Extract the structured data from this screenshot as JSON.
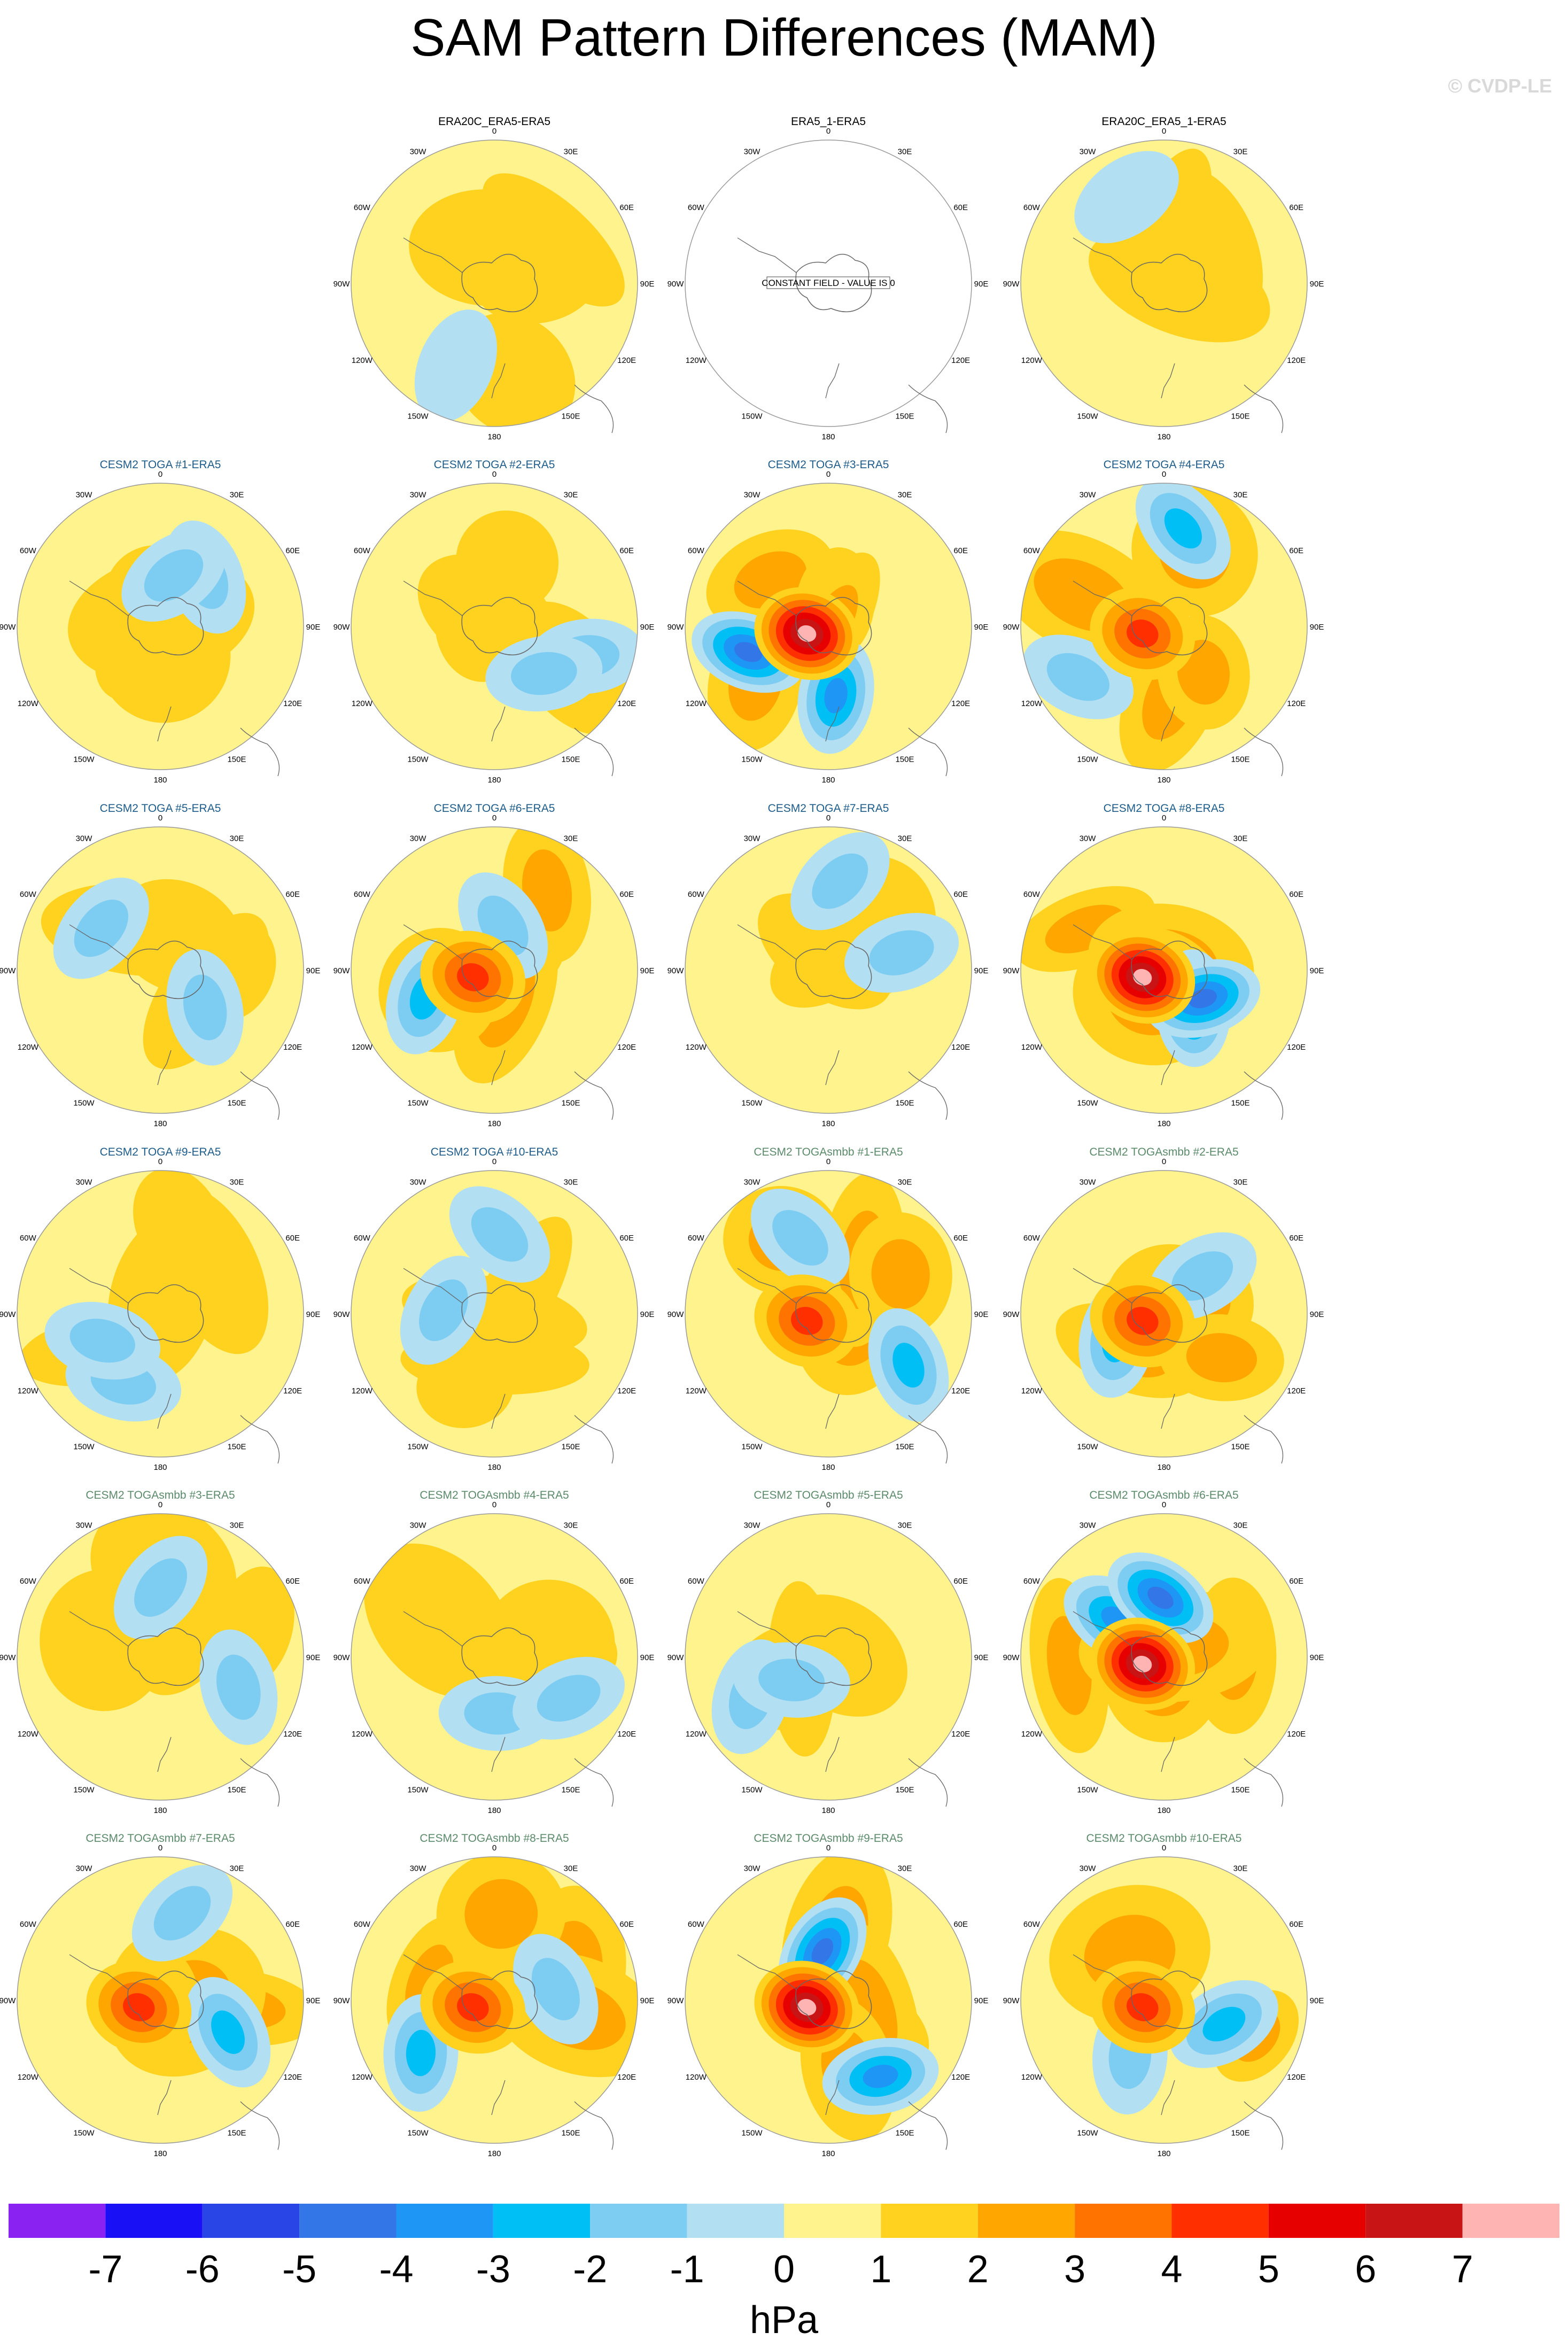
{
  "title": "SAM Pattern Differences (MAM)",
  "watermark": "© CVDP-LE",
  "lon_labels": [
    "0",
    "30E",
    "60E",
    "90E",
    "120E",
    "150E",
    "180",
    "150W",
    "120W",
    "90W",
    "60W",
    "30W"
  ],
  "colorbar": {
    "units": "hPa",
    "levels": [
      "-7",
      "-6",
      "-5",
      "-4",
      "-3",
      "-2",
      "-1",
      "0",
      "1",
      "2",
      "3",
      "4",
      "5",
      "6",
      "7"
    ],
    "colors": [
      "#8a23f2",
      "#1a10f5",
      "#2a45e6",
      "#3376e8",
      "#1e96f5",
      "#00bff5",
      "#7dccf2",
      "#b3dff2",
      "#fff38d",
      "#ffd21f",
      "#ffa600",
      "#ff7300",
      "#ff2f00",
      "#e60000",
      "#c81414",
      "#ffb4b4"
    ]
  },
  "panels": [
    {
      "title": "ERA20C_ERA5-ERA5",
      "title_color": "#000000",
      "pattern": "obs"
    },
    {
      "title": "ERA5_1-ERA5",
      "title_color": "#000000",
      "pattern": "constant",
      "note": "CONSTANT FIELD - VALUE IS 0"
    },
    {
      "title": "ERA20C_ERA5_1-ERA5",
      "title_color": "#000000",
      "pattern": "obs"
    },
    {
      "title": "CESM2 TOGA #1-ERA5",
      "title_color": "#1d5c8a",
      "pattern": "weak"
    },
    {
      "title": "CESM2 TOGA #2-ERA5",
      "title_color": "#1d5c8a",
      "pattern": "weak"
    },
    {
      "title": "CESM2 TOGA #3-ERA5",
      "title_color": "#1d5c8a",
      "pattern": "strong"
    },
    {
      "title": "CESM2 TOGA #4-ERA5",
      "title_color": "#1d5c8a",
      "pattern": "medium"
    },
    {
      "title": "CESM2 TOGA #5-ERA5",
      "title_color": "#1d5c8a",
      "pattern": "weak"
    },
    {
      "title": "CESM2 TOGA #6-ERA5",
      "title_color": "#1d5c8a",
      "pattern": "medium"
    },
    {
      "title": "CESM2 TOGA #7-ERA5",
      "title_color": "#1d5c8a",
      "pattern": "weak"
    },
    {
      "title": "CESM2 TOGA #8-ERA5",
      "title_color": "#1d5c8a",
      "pattern": "strong"
    },
    {
      "title": "CESM2 TOGA #9-ERA5",
      "title_color": "#1d5c8a",
      "pattern": "weak"
    },
    {
      "title": "CESM2 TOGA #10-ERA5",
      "title_color": "#1d5c8a",
      "pattern": "weak"
    },
    {
      "title": "CESM2 TOGAsmbb #1-ERA5",
      "title_color": "#5a8a6a",
      "pattern": "medium"
    },
    {
      "title": "CESM2 TOGAsmbb #2-ERA5",
      "title_color": "#5a8a6a",
      "pattern": "medium"
    },
    {
      "title": "CESM2 TOGAsmbb #3-ERA5",
      "title_color": "#5a8a6a",
      "pattern": "weak"
    },
    {
      "title": "CESM2 TOGAsmbb #4-ERA5",
      "title_color": "#5a8a6a",
      "pattern": "weak"
    },
    {
      "title": "CESM2 TOGAsmbb #5-ERA5",
      "title_color": "#5a8a6a",
      "pattern": "weak"
    },
    {
      "title": "CESM2 TOGAsmbb #6-ERA5",
      "title_color": "#5a8a6a",
      "pattern": "strong"
    },
    {
      "title": "CESM2 TOGAsmbb #7-ERA5",
      "title_color": "#5a8a6a",
      "pattern": "medium"
    },
    {
      "title": "CESM2 TOGAsmbb #8-ERA5",
      "title_color": "#5a8a6a",
      "pattern": "medium"
    },
    {
      "title": "CESM2 TOGAsmbb #9-ERA5",
      "title_color": "#5a8a6a",
      "pattern": "strong"
    },
    {
      "title": "CESM2 TOGAsmbb #10-ERA5",
      "title_color": "#5a8a6a",
      "pattern": "medium"
    }
  ]
}
